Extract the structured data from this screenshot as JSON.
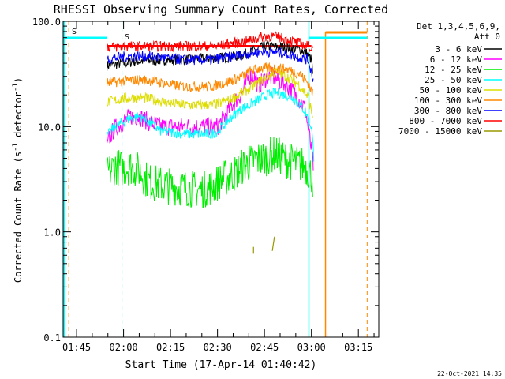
{
  "chart_data": {
    "type": "line",
    "title": "RHESSI Observing Summary Count Rates, Corrected",
    "xlabel": "Start Time (17-Apr-14 01:40:42)",
    "ylabel_main": "Corrected Count Rate (s",
    "ylabel_sup": "-1",
    "ylabel_tail": " detector",
    "ylabel_sup2": "-1",
    "ylabel_end": ")",
    "yscale": "log",
    "ylim": [
      0.1,
      100.0
    ],
    "y_ticks": [
      {
        "value": 0.1,
        "label": "0.1"
      },
      {
        "value": 1.0,
        "label": "1.0"
      },
      {
        "value": 10.0,
        "label": "10.0"
      },
      {
        "value": 100.0,
        "label": "100.0"
      }
    ],
    "x_ticks_minutes": [
      {
        "value": 105,
        "label": "01:45"
      },
      {
        "value": 120,
        "label": "02:00"
      },
      {
        "value": 135,
        "label": "02:15"
      },
      {
        "value": 150,
        "label": "02:30"
      },
      {
        "value": 165,
        "label": "02:45"
      },
      {
        "value": 180,
        "label": "03:00"
      },
      {
        "value": 195,
        "label": "03:15"
      }
    ],
    "xlim_minutes": [
      100.7,
      201.5
    ],
    "legend_position": "top-right",
    "legend_header": [
      "Det 1,3,4,5,6,9,",
      "Att 0"
    ],
    "series": [
      {
        "name": "3 - 6 keV",
        "color": "#000000",
        "points": [
          [
            114.7,
            38
          ],
          [
            125,
            42
          ],
          [
            135,
            43
          ],
          [
            145,
            44
          ],
          [
            150,
            45
          ],
          [
            155,
            46
          ],
          [
            160,
            50
          ],
          [
            165,
            58
          ],
          [
            170,
            57
          ],
          [
            175,
            55
          ],
          [
            178,
            52
          ],
          [
            180,
            43
          ],
          [
            180.5,
            30
          ]
        ]
      },
      {
        "name": "6 - 12 keV",
        "color": "#ff00ff",
        "points": [
          [
            114.7,
            6
          ],
          [
            115.2,
            7.5
          ],
          [
            117,
            9.5
          ],
          [
            120,
            11
          ],
          [
            122,
            12.5
          ],
          [
            125,
            12.5
          ],
          [
            128,
            11
          ],
          [
            132,
            10
          ],
          [
            140,
            10
          ],
          [
            148,
            10
          ],
          [
            150,
            10
          ],
          [
            152,
            12
          ],
          [
            154,
            15
          ],
          [
            156,
            18
          ],
          [
            158,
            21
          ],
          [
            160,
            30
          ],
          [
            162,
            30
          ],
          [
            163,
            24
          ],
          [
            164,
            26
          ],
          [
            166,
            30
          ],
          [
            168,
            29
          ],
          [
            170,
            27
          ],
          [
            172,
            25
          ],
          [
            175,
            20
          ],
          [
            178,
            15
          ],
          [
            180,
            6
          ],
          [
            180.7,
            4
          ]
        ]
      },
      {
        "name": "12 - 25 keV",
        "color": "#00ee00",
        "points": [
          [
            114.7,
            3.5
          ],
          [
            117,
            4.2
          ],
          [
            120,
            4
          ],
          [
            122,
            4.2
          ],
          [
            125,
            3.8
          ],
          [
            128,
            3
          ],
          [
            132,
            2.8
          ],
          [
            140,
            2.6
          ],
          [
            145,
            2.5
          ],
          [
            148,
            2.7
          ],
          [
            152,
            3.2
          ],
          [
            155,
            3.5
          ],
          [
            158,
            4.2
          ],
          [
            160,
            4.5
          ],
          [
            162,
            4.8
          ],
          [
            165,
            5
          ],
          [
            168,
            5.5
          ],
          [
            170,
            5.2
          ],
          [
            172,
            4.8
          ],
          [
            175,
            4.5
          ],
          [
            178,
            4.2
          ],
          [
            180,
            3.5
          ],
          [
            180.5,
            3
          ]
        ]
      },
      {
        "name": "25 - 50 keV",
        "color": "#00ffff",
        "points": [
          [
            114.7,
            8
          ],
          [
            117,
            10
          ],
          [
            120,
            11
          ],
          [
            122,
            12
          ],
          [
            125,
            12.5
          ],
          [
            128,
            11
          ],
          [
            132,
            9
          ],
          [
            140,
            8.5
          ],
          [
            148,
            8.5
          ],
          [
            150,
            9
          ],
          [
            154,
            12
          ],
          [
            158,
            15
          ],
          [
            160,
            16
          ],
          [
            163,
            18
          ],
          [
            166,
            20
          ],
          [
            169,
            21
          ],
          [
            172,
            20
          ],
          [
            175,
            18
          ],
          [
            178,
            14
          ],
          [
            180,
            10
          ],
          [
            180.8,
            5
          ]
        ]
      },
      {
        "name": "50 - 100 keV",
        "color": "#dddd00",
        "points": [
          [
            114.7,
            17
          ],
          [
            120,
            18.5
          ],
          [
            125,
            19
          ],
          [
            130,
            18
          ],
          [
            135,
            16.5
          ],
          [
            140,
            16
          ],
          [
            148,
            16
          ],
          [
            150,
            16.5
          ],
          [
            154,
            18
          ],
          [
            158,
            21
          ],
          [
            162,
            25
          ],
          [
            166,
            30
          ],
          [
            169,
            33
          ],
          [
            172,
            30
          ],
          [
            176,
            25
          ],
          [
            179,
            19
          ],
          [
            180.5,
            12
          ]
        ]
      },
      {
        "name": "100 - 300 keV",
        "color": "#ff8800",
        "points": [
          [
            114.7,
            26
          ],
          [
            120,
            27
          ],
          [
            125,
            28
          ],
          [
            130,
            27
          ],
          [
            135,
            25
          ],
          [
            140,
            24
          ],
          [
            148,
            24
          ],
          [
            150,
            25
          ],
          [
            154,
            27
          ],
          [
            158,
            30
          ],
          [
            161,
            34
          ],
          [
            164,
            36
          ],
          [
            168,
            36
          ],
          [
            172,
            35
          ],
          [
            176,
            32
          ],
          [
            179,
            26
          ],
          [
            180.5,
            20
          ]
        ]
      },
      {
        "name": "300 - 800 keV",
        "color": "#0000ff",
        "points": [
          [
            114.7,
            44
          ],
          [
            120,
            46
          ],
          [
            125,
            47
          ],
          [
            130,
            46
          ],
          [
            135,
            44
          ],
          [
            140,
            43
          ],
          [
            148,
            43
          ],
          [
            150,
            44
          ],
          [
            154,
            46
          ],
          [
            158,
            48
          ],
          [
            161,
            50
          ],
          [
            164,
            52
          ],
          [
            168,
            51
          ],
          [
            172,
            49
          ],
          [
            176,
            46
          ],
          [
            179,
            43
          ],
          [
            180.6,
            28
          ]
        ]
      },
      {
        "name": "800 - 7000 keV",
        "color": "#ff0000",
        "points": [
          [
            114.7,
            57
          ],
          [
            118,
            57
          ],
          [
            120,
            58
          ],
          [
            125,
            58
          ],
          [
            130,
            58
          ],
          [
            135,
            58
          ],
          [
            140,
            58
          ],
          [
            145,
            58
          ],
          [
            150,
            58
          ],
          [
            155,
            62
          ],
          [
            160,
            65
          ],
          [
            163,
            70
          ],
          [
            165,
            72
          ],
          [
            168,
            72
          ],
          [
            170,
            70
          ],
          [
            173,
            66
          ],
          [
            176,
            62
          ],
          [
            179,
            58
          ],
          [
            180.5,
            54
          ]
        ]
      },
      {
        "name": "7000 - 15000 keV",
        "color": "#999900",
        "points": [
          [
            161.5,
            0.62
          ],
          [
            161.5,
            0.72
          ],
          [
            167.5,
            0.66
          ],
          [
            168.2,
            0.9
          ]
        ]
      }
    ]
  },
  "footer_timestamp": "22-Oct-2021 14:35",
  "top_left_labels": [
    "S",
    "S"
  ],
  "top_left_label_colors": [
    "#ff8800",
    "#00ffff"
  ],
  "overlay": {
    "cyan_color": "#00ffff",
    "orange_color": "#ff8800",
    "red_color": "#ff0000",
    "dashed_cyan_x": [
      119.5
    ],
    "dashed_orange_x": [
      197.8
    ],
    "solid_cyan_x": [
      101,
      179.2
    ],
    "solid_orange_x": [
      184.5
    ],
    "cyan_bar_segments": [
      [
        101,
        114.7
      ],
      [
        179.2,
        197.8
      ]
    ],
    "orange_bar_segment": [
      184.5,
      197.8
    ],
    "red_bar_segment": [
      114.7,
      180
    ]
  }
}
